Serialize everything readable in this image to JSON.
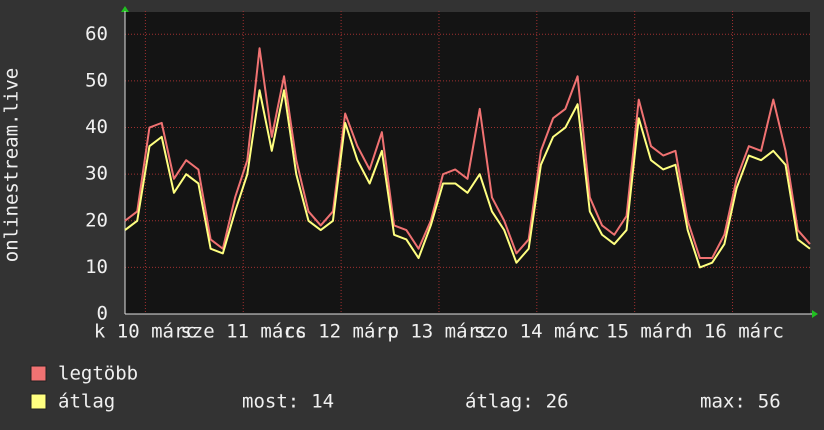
{
  "chart_data": {
    "type": "line",
    "y_label": "onlinestream.live",
    "x": [
      0,
      3,
      6,
      9,
      12,
      15,
      18,
      21,
      24,
      27,
      30,
      33,
      36,
      39,
      42,
      45,
      48,
      51,
      54,
      57,
      60,
      63,
      66,
      69,
      72,
      75,
      78,
      81,
      84,
      87,
      90,
      93,
      96,
      99,
      102,
      105,
      108,
      111,
      114,
      117,
      120,
      123,
      126,
      129,
      132,
      135,
      138,
      141,
      144,
      147,
      150,
      153,
      156,
      159,
      162,
      165,
      168
    ],
    "xlim": [
      0,
      168
    ],
    "xticks": [
      {
        "value": 5,
        "label": "k 10 márc"
      },
      {
        "value": 29,
        "label": "sze 11 márc"
      },
      {
        "value": 53,
        "label": "cs 12 márc"
      },
      {
        "value": 77,
        "label": "p 13 márc"
      },
      {
        "value": 101,
        "label": "szo 14 márc"
      },
      {
        "value": 125,
        "label": "v 15 márc"
      },
      {
        "value": 149,
        "label": "h 16 márc"
      }
    ],
    "ylim": [
      0,
      65
    ],
    "yticks": [
      0,
      10,
      20,
      30,
      40,
      50,
      60
    ],
    "grid": true,
    "series": [
      {
        "name": "legtöbb",
        "color": "#f07272",
        "values": [
          20,
          22,
          40,
          41,
          29,
          33,
          31,
          16,
          14,
          25,
          33,
          57,
          38,
          51,
          33,
          22,
          19,
          22,
          43,
          36,
          31,
          39,
          19,
          18,
          14,
          20,
          30,
          31,
          29,
          44,
          25,
          20,
          13,
          16,
          35,
          42,
          44,
          51,
          25,
          19,
          17,
          21,
          46,
          36,
          34,
          35,
          20,
          12,
          12,
          17,
          29,
          36,
          35,
          46,
          35,
          18,
          15
        ]
      },
      {
        "name": "átlag",
        "color": "#ffff80",
        "values": [
          18,
          20,
          36,
          38,
          26,
          30,
          28,
          14,
          13,
          22,
          30,
          48,
          35,
          48,
          30,
          20,
          18,
          20,
          41,
          33,
          28,
          35,
          17,
          16,
          12,
          19,
          28,
          28,
          26,
          30,
          22,
          18,
          11,
          14,
          32,
          38,
          40,
          45,
          22,
          17,
          15,
          18,
          42,
          33,
          31,
          32,
          18,
          10,
          11,
          15,
          27,
          34,
          33,
          35,
          32,
          16,
          14
        ]
      }
    ],
    "stats": [
      {
        "label": "most:",
        "value": 14
      },
      {
        "label": "átlag:",
        "value": 26
      },
      {
        "label": "max:",
        "value": 56
      }
    ]
  }
}
